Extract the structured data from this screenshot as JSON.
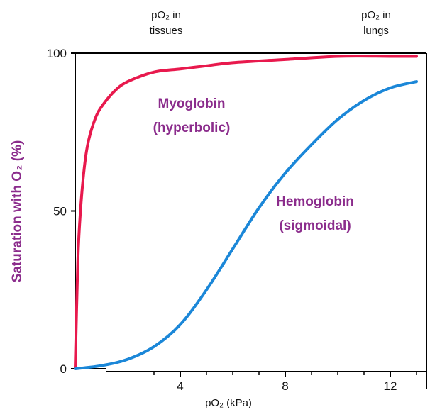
{
  "chart_data": {
    "type": "line",
    "xlabel": "pO₂ (kPa)",
    "ylabel": "Saturation with O₂ (%)",
    "xlim": [
      0,
      13
    ],
    "ylim": [
      0,
      100
    ],
    "xticks": [
      4,
      8,
      12
    ],
    "yticks": [
      0,
      50,
      100
    ],
    "top_annotations": [
      {
        "line1": "pO₂ in",
        "line2": "tissues",
        "x": 4
      },
      {
        "line1": "pO₂ in",
        "line2": "lungs",
        "x": 12
      }
    ],
    "series": [
      {
        "name": "Myoglobin (hyperbolic)",
        "label_line1": "Myoglobin",
        "label_line2": "(hyperbolic)",
        "color": "#e8194d",
        "x": [
          0,
          0.1,
          0.2,
          0.35,
          0.5,
          0.75,
          1.0,
          1.5,
          2.0,
          3.0,
          4.0,
          5.0,
          6.0,
          8.0,
          10.0,
          12.0,
          13.0
        ],
        "y": [
          0,
          34,
          50,
          64,
          72,
          79,
          83,
          88,
          91,
          94,
          95,
          96,
          97,
          98,
          99,
          99,
          99
        ]
      },
      {
        "name": "Hemoglobin (sigmoidal)",
        "label_line1": "Hemoglobin",
        "label_line2": "(sigmoidal)",
        "color": "#1b87d8",
        "x": [
          0,
          1,
          2,
          3,
          4,
          5,
          6,
          7,
          8,
          9,
          10,
          11,
          12,
          13
        ],
        "y": [
          0,
          1,
          3,
          7,
          14,
          25,
          38,
          51,
          62,
          71,
          79,
          85,
          89,
          91
        ]
      }
    ],
    "colors": {
      "ylabel": "#8b2c8c",
      "series_labels": "#8b2c8c",
      "axis": "#000000"
    }
  }
}
